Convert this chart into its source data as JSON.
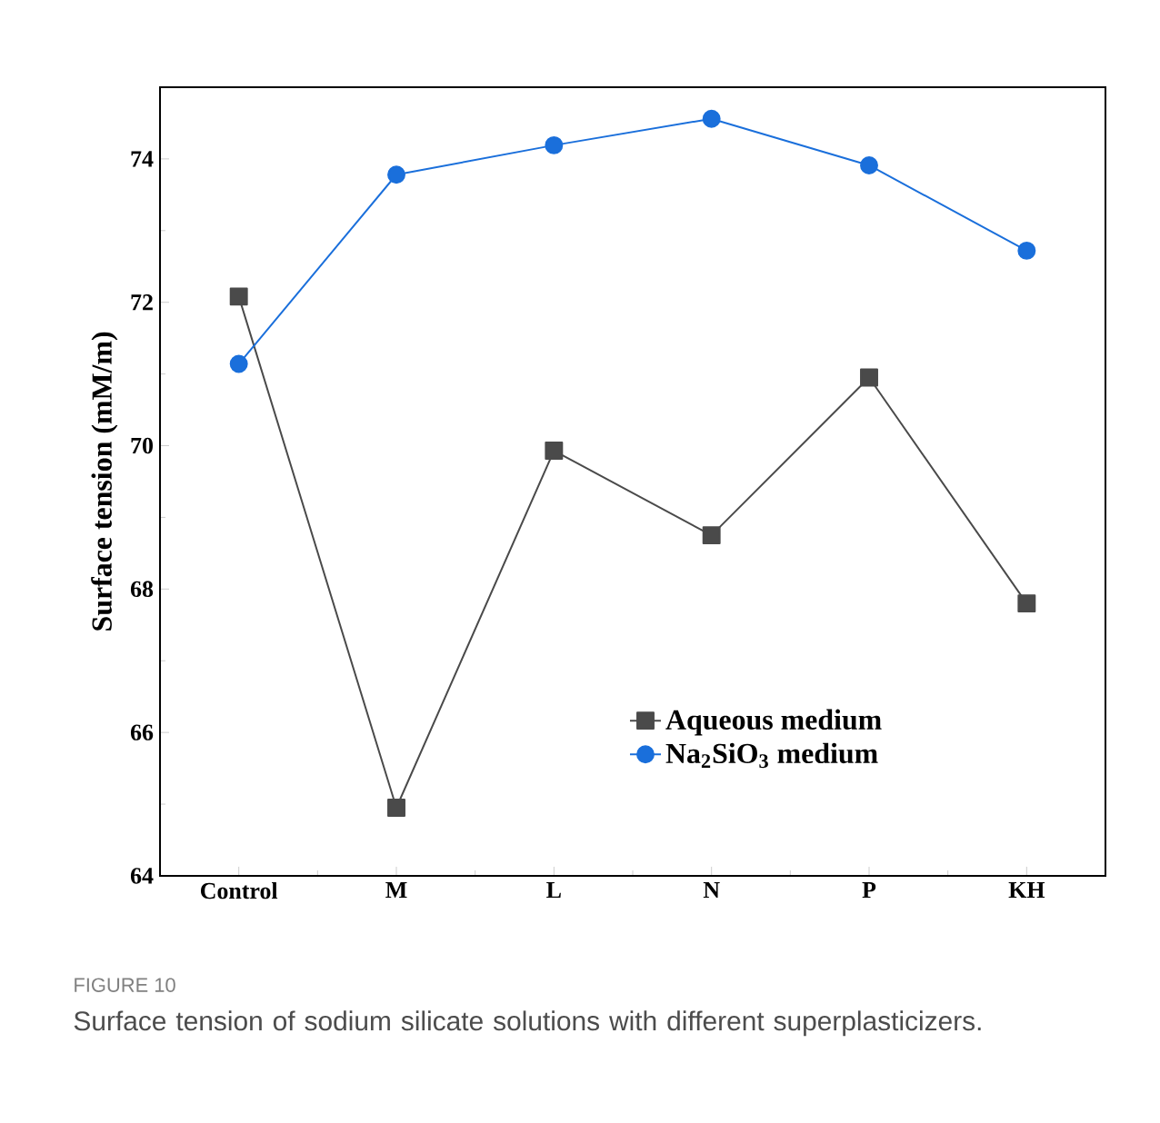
{
  "chart_data": {
    "type": "line",
    "ylabel": "Surface tension (mM/m)",
    "categories": [
      "Control",
      "M",
      "L",
      "N",
      "P",
      "KH"
    ],
    "series": [
      {
        "name": "Aqueous medium",
        "color": "#4a4a4a",
        "marker": "square",
        "values": [
          72.08,
          64.95,
          69.93,
          68.75,
          70.95,
          67.8
        ]
      },
      {
        "name": "Na$_{2}$SiO$_{3}$ medium",
        "color": "#1a6fdb",
        "marker": "circle",
        "values": [
          71.14,
          73.78,
          74.19,
          74.56,
          73.91,
          72.72
        ]
      }
    ],
    "ylim": [
      64,
      75
    ],
    "yticks": [
      64,
      66,
      68,
      70,
      72,
      74
    ],
    "grid": false,
    "legend": "bottom right",
    "line_style": "solid",
    "annotations": [
      "FIGURE 10",
      "Surface tension of sodium silicate solutions with different superplasticizers."
    ]
  }
}
